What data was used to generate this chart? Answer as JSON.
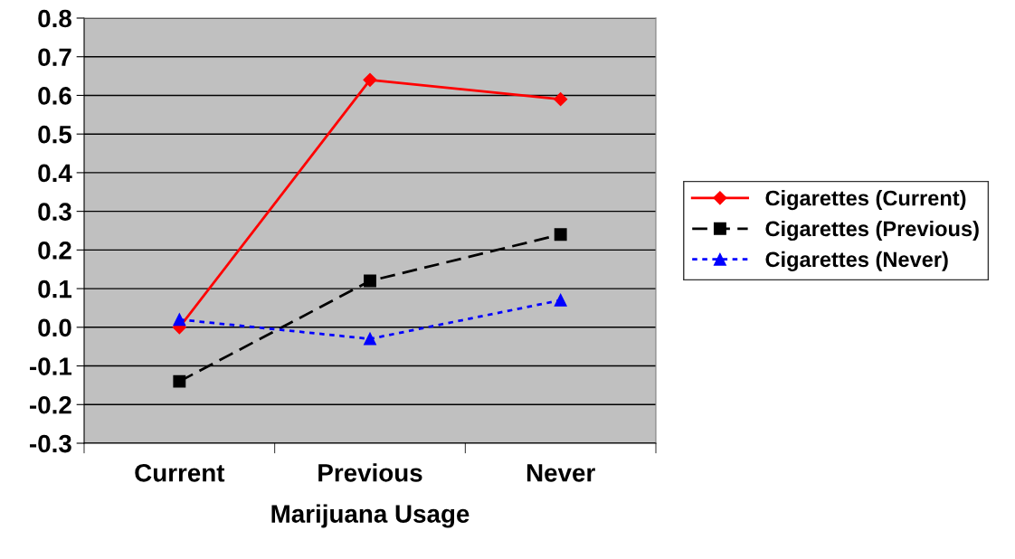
{
  "chart_data": {
    "type": "line",
    "xlabel": "Marijuana Usage",
    "categories": [
      "Current",
      "Previous",
      "Never"
    ],
    "series": [
      {
        "name": "Cigarettes (Current)",
        "color": "#ff0000",
        "values": [
          0.0,
          0.64,
          0.59
        ],
        "marker": "diamond",
        "line_style": "solid"
      },
      {
        "name": "Cigarettes (Previous)",
        "color": "#000000",
        "values": [
          -0.14,
          0.12,
          0.24
        ],
        "marker": "square",
        "line_style": "dashed"
      },
      {
        "name": "Cigarettes (Never)",
        "color": "#0000ff",
        "values": [
          0.02,
          -0.03,
          0.07
        ],
        "marker": "triangle",
        "line_style": "dotted"
      }
    ],
    "ylim": [
      -0.3,
      0.8
    ],
    "yticks": [
      {
        "value": -0.3,
        "label": "-0.3"
      },
      {
        "value": -0.2,
        "label": "-0.2"
      },
      {
        "value": -0.1,
        "label": "-0.1"
      },
      {
        "value": 0.0,
        "label": "0.0"
      },
      {
        "value": 0.1,
        "label": "0.1"
      },
      {
        "value": 0.2,
        "label": "0.2"
      },
      {
        "value": 0.3,
        "label": "0.3"
      },
      {
        "value": 0.4,
        "label": "0.4"
      },
      {
        "value": 0.5,
        "label": "0.5"
      },
      {
        "value": 0.6,
        "label": "0.6"
      },
      {
        "value": 0.7,
        "label": "0.7"
      },
      {
        "value": 0.8,
        "label": "0.8"
      }
    ],
    "grid": "y",
    "legend": "right"
  }
}
